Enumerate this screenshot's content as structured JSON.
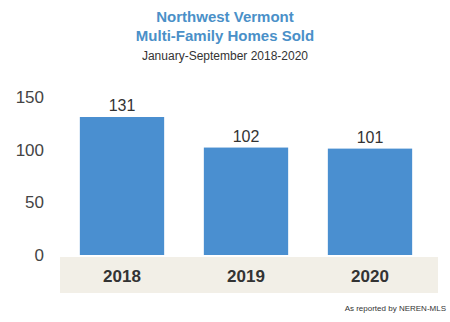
{
  "chart_data": {
    "type": "bar",
    "title": "Northwest Vermont\nMulti-Family Homes Sold",
    "subtitle": "January-September 2018-2020",
    "categories": [
      "2018",
      "2019",
      "2020"
    ],
    "values": [
      131,
      102,
      101
    ],
    "color": "#4a8fd0",
    "ylim": [
      0,
      150
    ],
    "yticks": [
      0,
      50,
      100,
      150
    ],
    "grid": false,
    "data_labels": true,
    "annotations": [
      "As reported by NEREN-MLS"
    ]
  }
}
